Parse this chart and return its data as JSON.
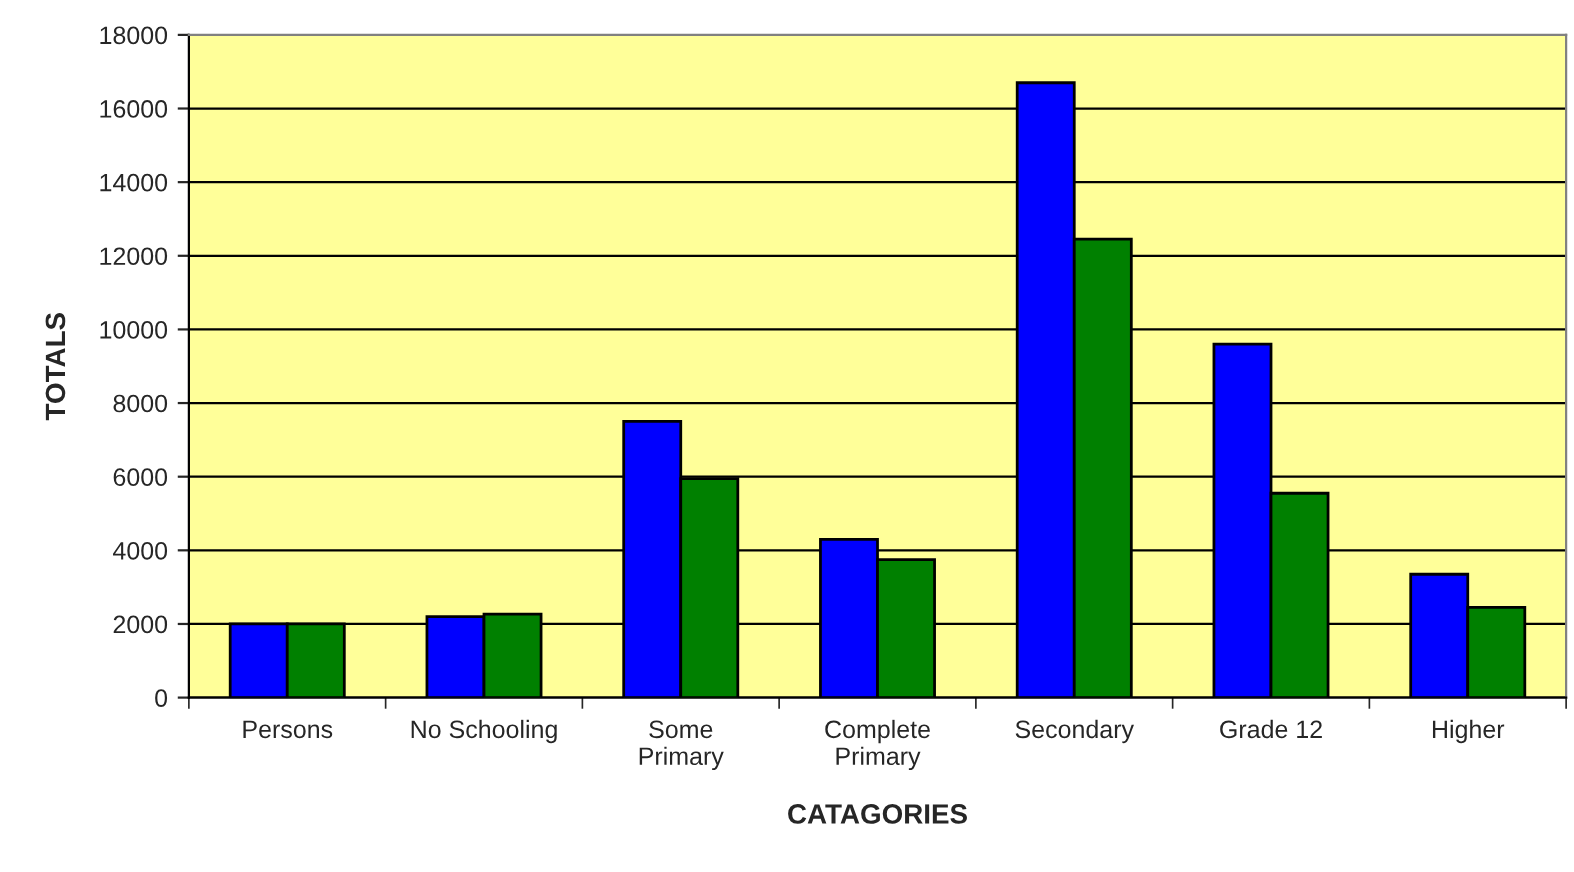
{
  "chart_data": {
    "type": "bar",
    "xlabel": "CATAGORIES",
    "ylabel": "TOTALS",
    "categories": [
      "Persons",
      "No Schooling",
      "Some\nPrimary",
      "Complete\nPrimary",
      "Secondary",
      "Grade 12",
      "Higher"
    ],
    "series": [
      {
        "color": "#0000ff",
        "values": [
          2000,
          2200,
          7500,
          4300,
          16700,
          9600,
          3350
        ]
      },
      {
        "color": "#008000",
        "values": [
          2000,
          2270,
          5950,
          3750,
          12450,
          5550,
          2450
        ]
      }
    ],
    "ylim": [
      0,
      18000
    ],
    "yticks": [
      0,
      2000,
      4000,
      6000,
      8000,
      10000,
      12000,
      14000,
      16000,
      18000
    ],
    "grid": "y",
    "legend": false
  }
}
